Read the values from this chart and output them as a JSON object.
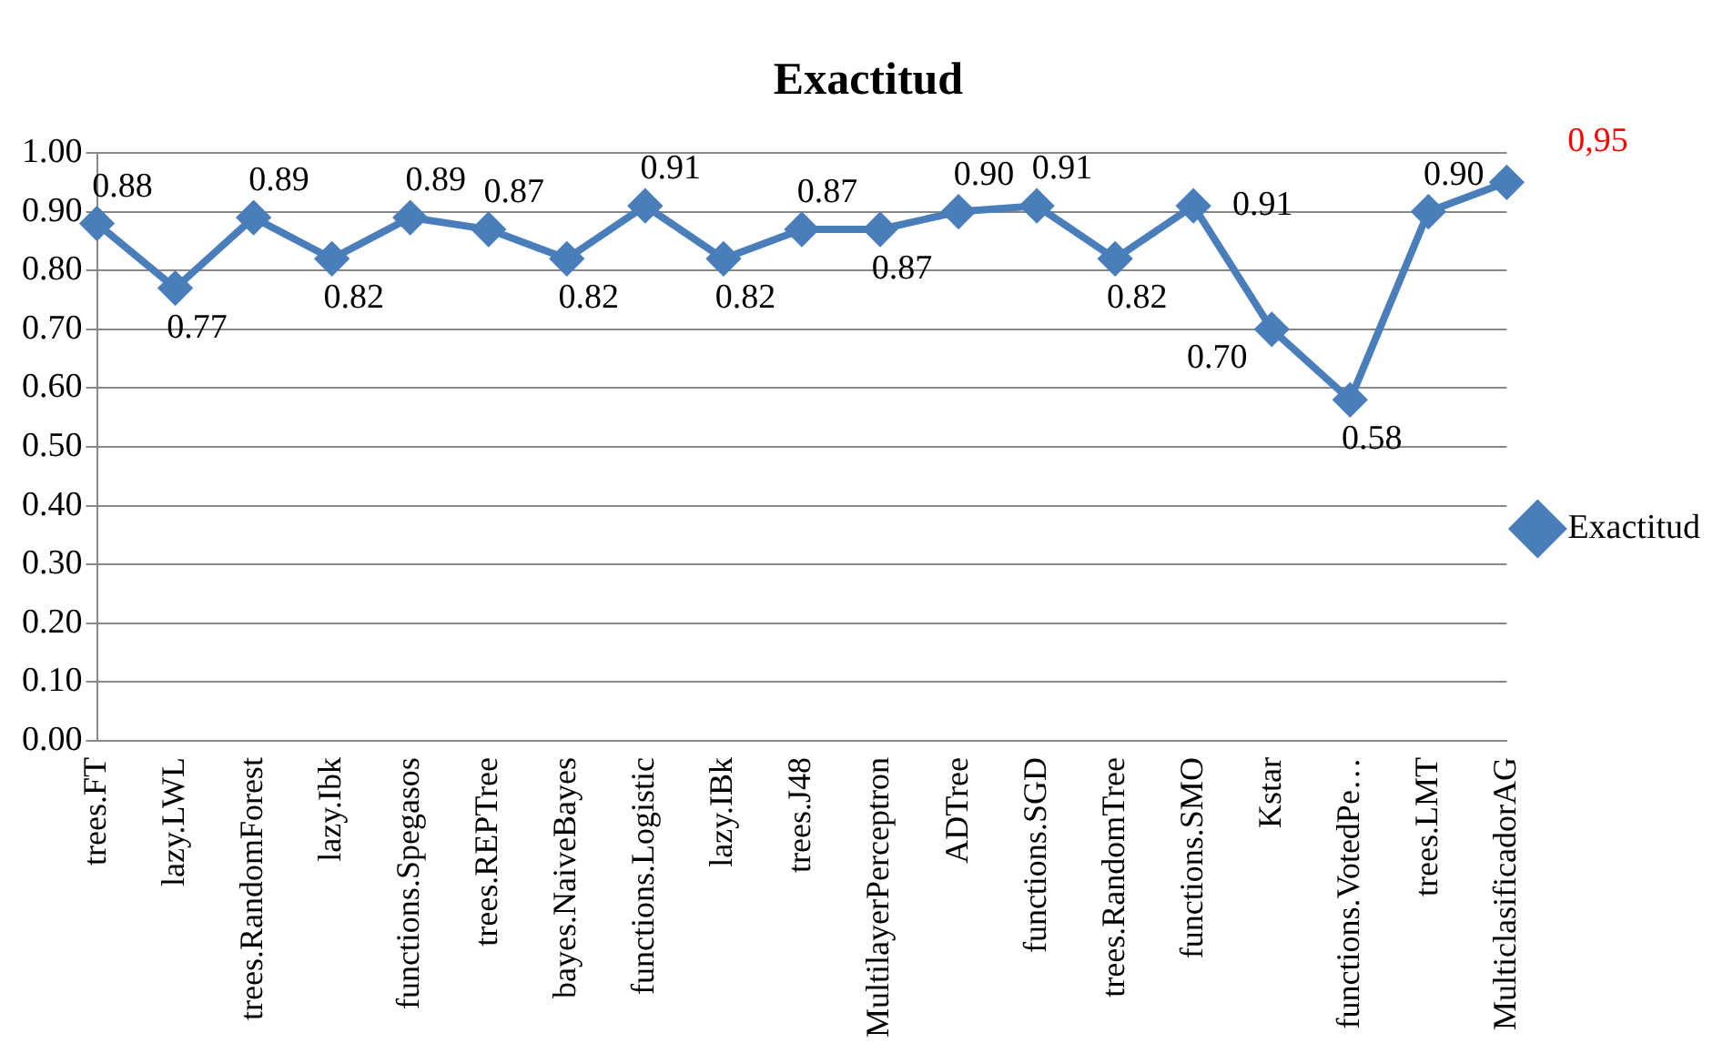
{
  "chart_data": {
    "type": "line",
    "title": "Exactitud",
    "categories": [
      "trees.FT",
      "lazy.LWL",
      "trees.RandomForest",
      "lazy.Ibk",
      "functions.Spegasos",
      "trees.REPTree",
      "bayes.NaiveBayes",
      "functions.Logistic",
      "lazy.IBk",
      "trees.J48",
      "MultilayerPerceptron",
      "ADTree",
      "functions.SGD",
      "trees.RandomTree",
      "functions.SMO",
      "Kstar",
      "functions.VotedPe…",
      "trees.LMT",
      "MulticlasificadorAG"
    ],
    "series": [
      {
        "name": "Exactitud",
        "color": "#4a7ebb",
        "values": [
          0.88,
          0.77,
          0.89,
          0.82,
          0.89,
          0.87,
          0.82,
          0.91,
          0.82,
          0.87,
          0.87,
          0.9,
          0.91,
          0.82,
          0.91,
          0.7,
          0.58,
          0.9,
          0.95
        ],
        "value_labels": [
          "0.88",
          "0.77",
          "0.89",
          "0.82",
          "0.89",
          "0.87",
          "0.82",
          "0.91",
          "0.82",
          "0.87",
          "0.87",
          "0.90",
          "0.91",
          "0.82",
          "0.91",
          "0.70",
          "0.58",
          "0.90",
          null
        ]
      }
    ],
    "annotations": [
      {
        "text": "0,95",
        "x": "MulticlasificadorAG",
        "y": 0.95
      }
    ],
    "ylim": [
      0,
      1
    ],
    "yticks": [
      {
        "value": 0,
        "label": "0.00"
      },
      {
        "value": 0.1,
        "label": "0.10"
      },
      {
        "value": 0.2,
        "label": "0.20"
      },
      {
        "value": 0.3,
        "label": "0.30"
      },
      {
        "value": 0.4,
        "label": "0.40"
      },
      {
        "value": 0.5,
        "label": "0.50"
      },
      {
        "value": 0.6,
        "label": "0.60"
      },
      {
        "value": 0.7,
        "label": "0.70"
      },
      {
        "value": 0.8,
        "label": "0.80"
      },
      {
        "value": 0.9,
        "label": "0.90"
      },
      {
        "value": 1,
        "label": "1.00"
      }
    ],
    "grid": "y",
    "legend": "right",
    "marker": "diamond",
    "line_style": "solid"
  }
}
